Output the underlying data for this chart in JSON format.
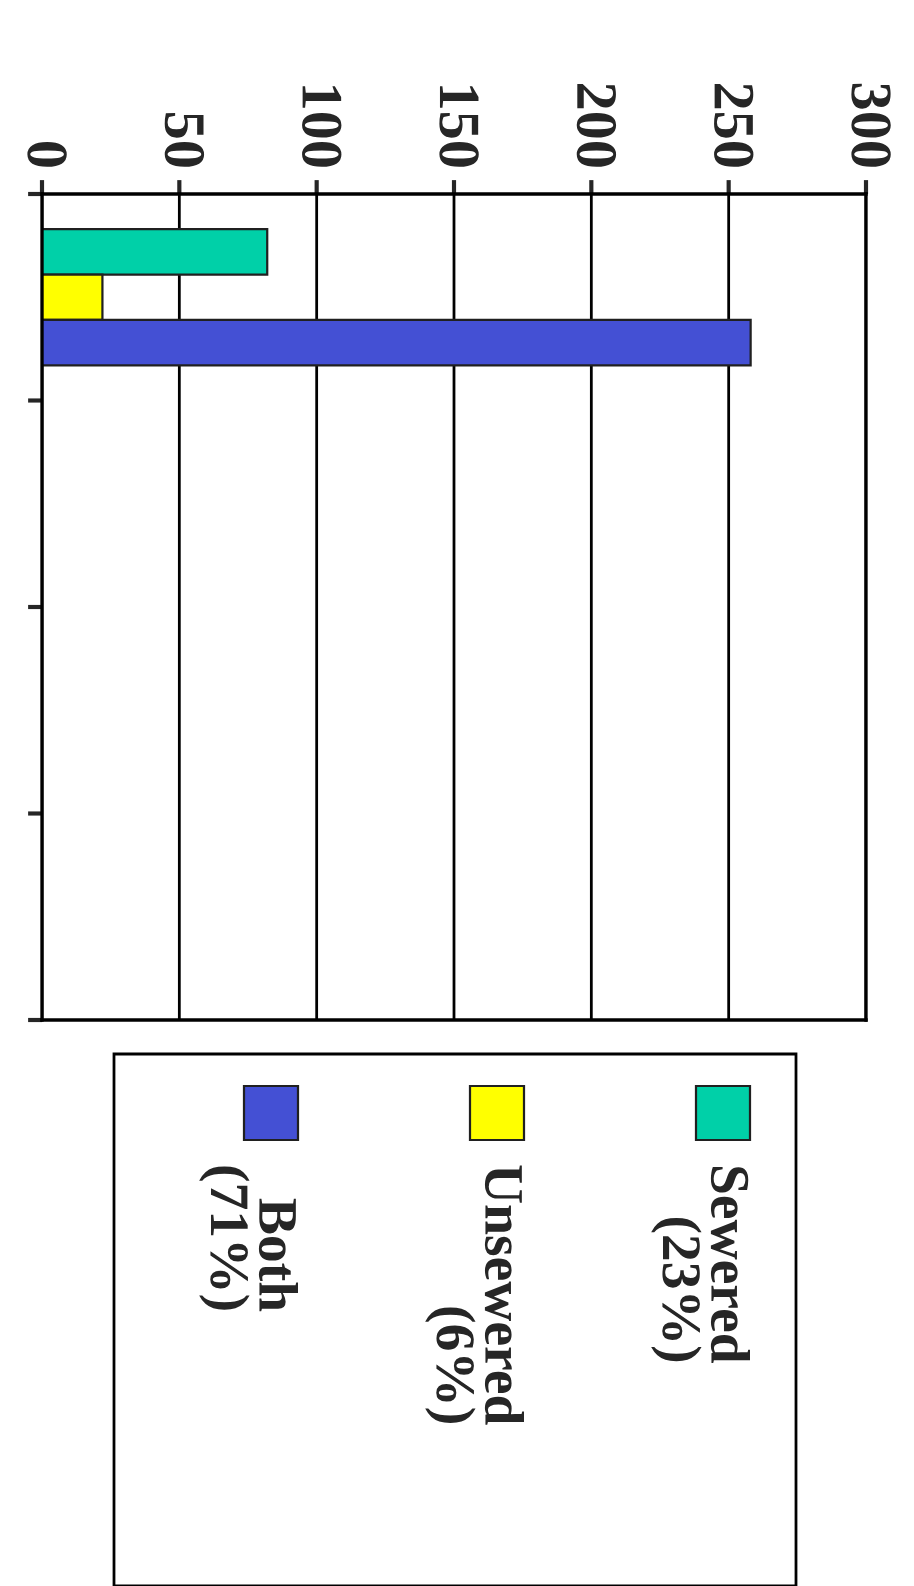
{
  "chart_data": {
    "type": "bar",
    "orientation": "horizontal",
    "categories": [
      null,
      null,
      null,
      null
    ],
    "series": [
      {
        "name": "Sewered (23%)",
        "color": "#00d0a8",
        "values": [
          82,
          null,
          null,
          null
        ]
      },
      {
        "name": "Unsewered (6%)",
        "color": "#ffff00",
        "values": [
          22,
          null,
          null,
          null
        ]
      },
      {
        "name": "Both (71%)",
        "color": "#4450d4",
        "values": [
          258,
          null,
          null,
          null
        ]
      }
    ],
    "xlim": [
      0,
      300
    ],
    "xticks": [
      0,
      50,
      100,
      150,
      200,
      250,
      300
    ],
    "grid": "x",
    "legend": "bottom"
  }
}
